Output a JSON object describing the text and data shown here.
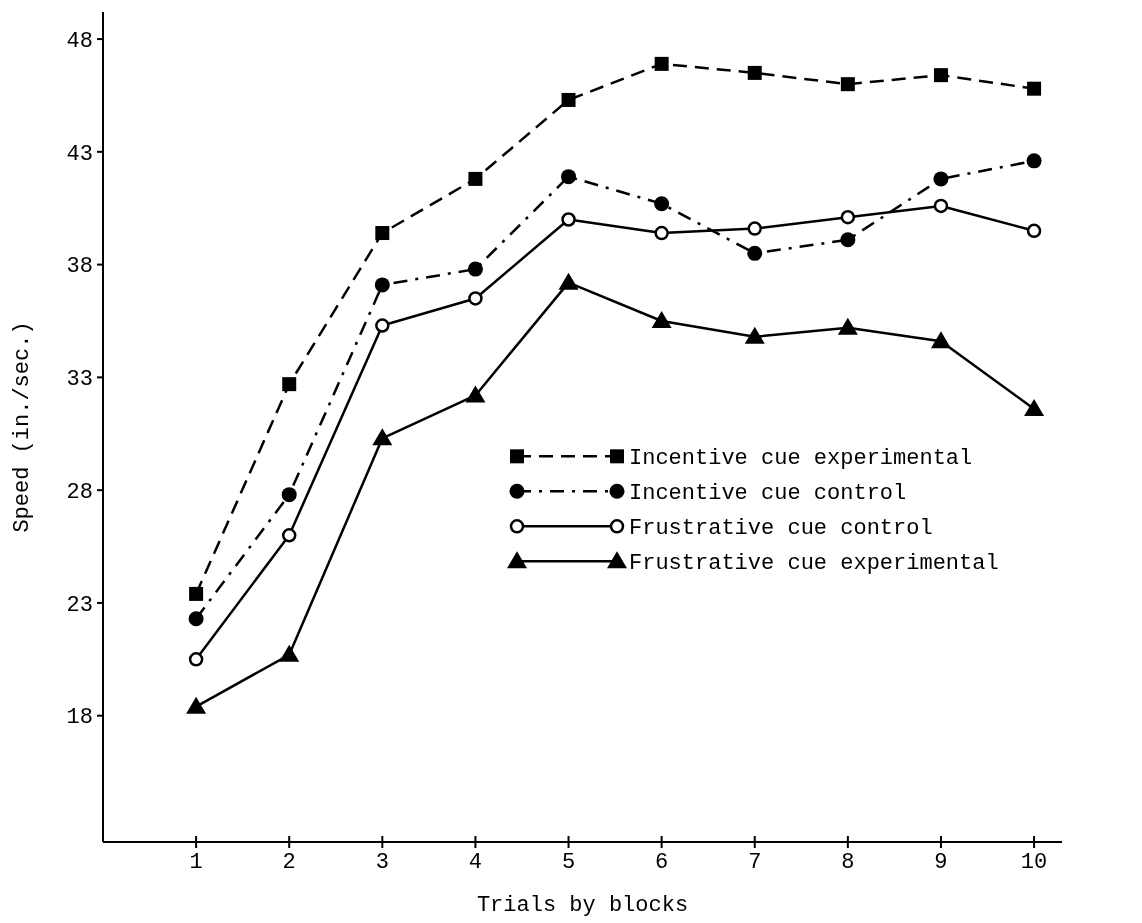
{
  "chart_data": {
    "type": "line",
    "xlabel": "Trials by blocks",
    "ylabel": "Speed (in./sec.)",
    "x": [
      1,
      2,
      3,
      4,
      5,
      6,
      7,
      8,
      9,
      10
    ],
    "xlim": [
      0,
      10.3
    ],
    "xticks": [
      1,
      2,
      3,
      4,
      5,
      6,
      7,
      8,
      9,
      10
    ],
    "ylim": [
      12.4,
      49.2
    ],
    "yticks": [
      18,
      23,
      28,
      33,
      38,
      43,
      48
    ],
    "grid": false,
    "legend": "bottom right",
    "series": [
      {
        "name": "Incentive cue experimental",
        "color": "#000000",
        "marker": "square",
        "line_style": "dashed",
        "values": [
          23.4,
          32.7,
          39.4,
          41.8,
          45.3,
          46.9,
          46.5,
          46.0,
          46.4,
          45.8
        ]
      },
      {
        "name": "Incentive cue control",
        "color": "#000000",
        "marker": "circle",
        "line_style": "dashdot",
        "values": [
          22.3,
          27.8,
          37.1,
          37.8,
          41.9,
          40.7,
          38.5,
          39.1,
          41.8,
          42.6
        ]
      },
      {
        "name": "Frustrative cue control",
        "color": "#000000",
        "marker": "open circle",
        "line_style": "solid",
        "values": [
          20.5,
          26.0,
          35.3,
          36.5,
          40.0,
          39.4,
          39.6,
          40.1,
          40.6,
          39.5
        ]
      },
      {
        "name": "Frustrative cue experimental",
        "color": "#000000",
        "marker": "triangle",
        "line_style": "solid",
        "values": [
          18.4,
          20.7,
          30.3,
          32.2,
          37.2,
          35.5,
          34.8,
          35.2,
          34.6,
          31.6
        ]
      }
    ]
  }
}
